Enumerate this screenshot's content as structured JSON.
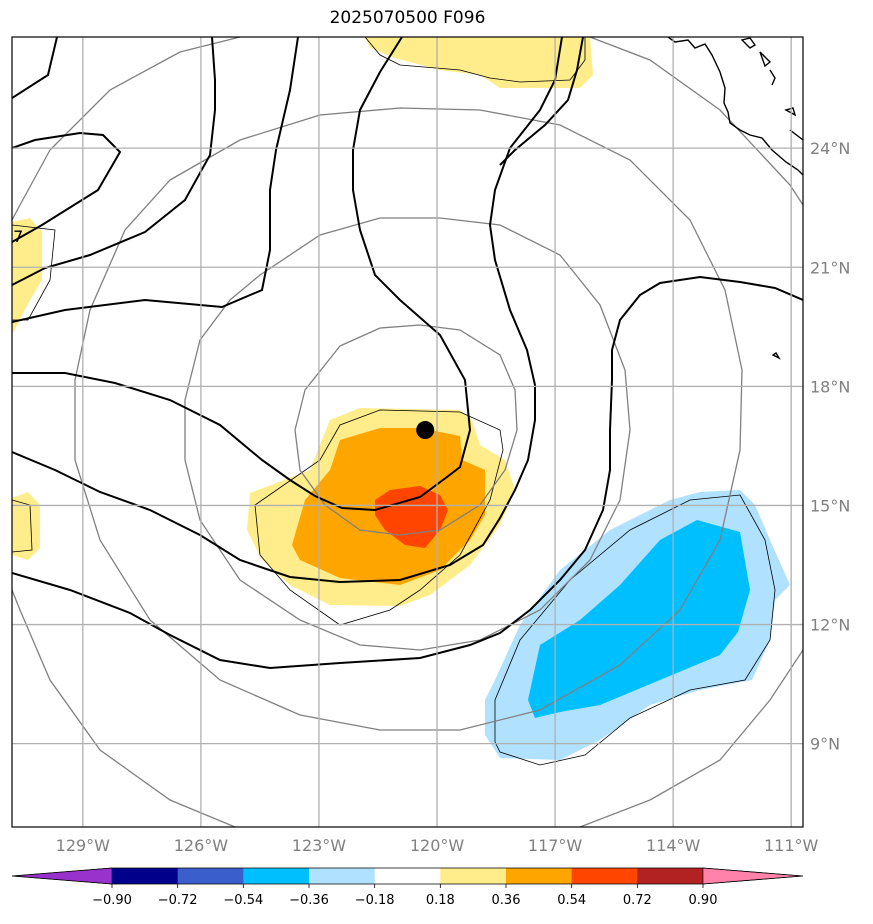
{
  "title": "2025070500 F096",
  "map": {
    "lon_range": [
      -130.8,
      -110.7
    ],
    "lat_range": [
      6.9,
      26.8
    ],
    "lon_ticks": [
      {
        "value": -129,
        "label": "129°W"
      },
      {
        "value": -126,
        "label": "126°W"
      },
      {
        "value": -123,
        "label": "123°W"
      },
      {
        "value": -120,
        "label": "120°W"
      },
      {
        "value": -117,
        "label": "117°W"
      },
      {
        "value": -114,
        "label": "114°W"
      },
      {
        "value": -111,
        "label": "111°W"
      }
    ],
    "lat_ticks": [
      {
        "value": 9,
        "label": "9°N"
      },
      {
        "value": 12,
        "label": "12°N"
      },
      {
        "value": 15,
        "label": "15°N"
      },
      {
        "value": 18,
        "label": "18°N"
      },
      {
        "value": 21,
        "label": "21°N"
      },
      {
        "value": 24,
        "label": "24°N"
      }
    ],
    "gridlines": true,
    "storm_center": {
      "lon": -120.3,
      "lat": 16.9
    },
    "range_ring_center": {
      "lon": -120.2,
      "lat": 16.5
    },
    "contour_inline_label": ".7",
    "colors": {
      "coast": "#000000",
      "range_rings": "#808080",
      "contours": "#000000",
      "grid": "#b0b0b0"
    }
  },
  "colorbar": {
    "ticks": [
      "−0.90",
      "−0.72",
      "−0.54",
      "−0.36",
      "−0.18",
      "0.18",
      "0.36",
      "0.54",
      "0.72",
      "0.90"
    ],
    "colors": [
      "#9932cc",
      "#00008b",
      "#3a5fcd",
      "#00bfff",
      "#b0e2ff",
      "#ffffff",
      "#ffec8b",
      "#ffa500",
      "#ff4500",
      "#b22222",
      "#ff82ab"
    ]
  }
}
